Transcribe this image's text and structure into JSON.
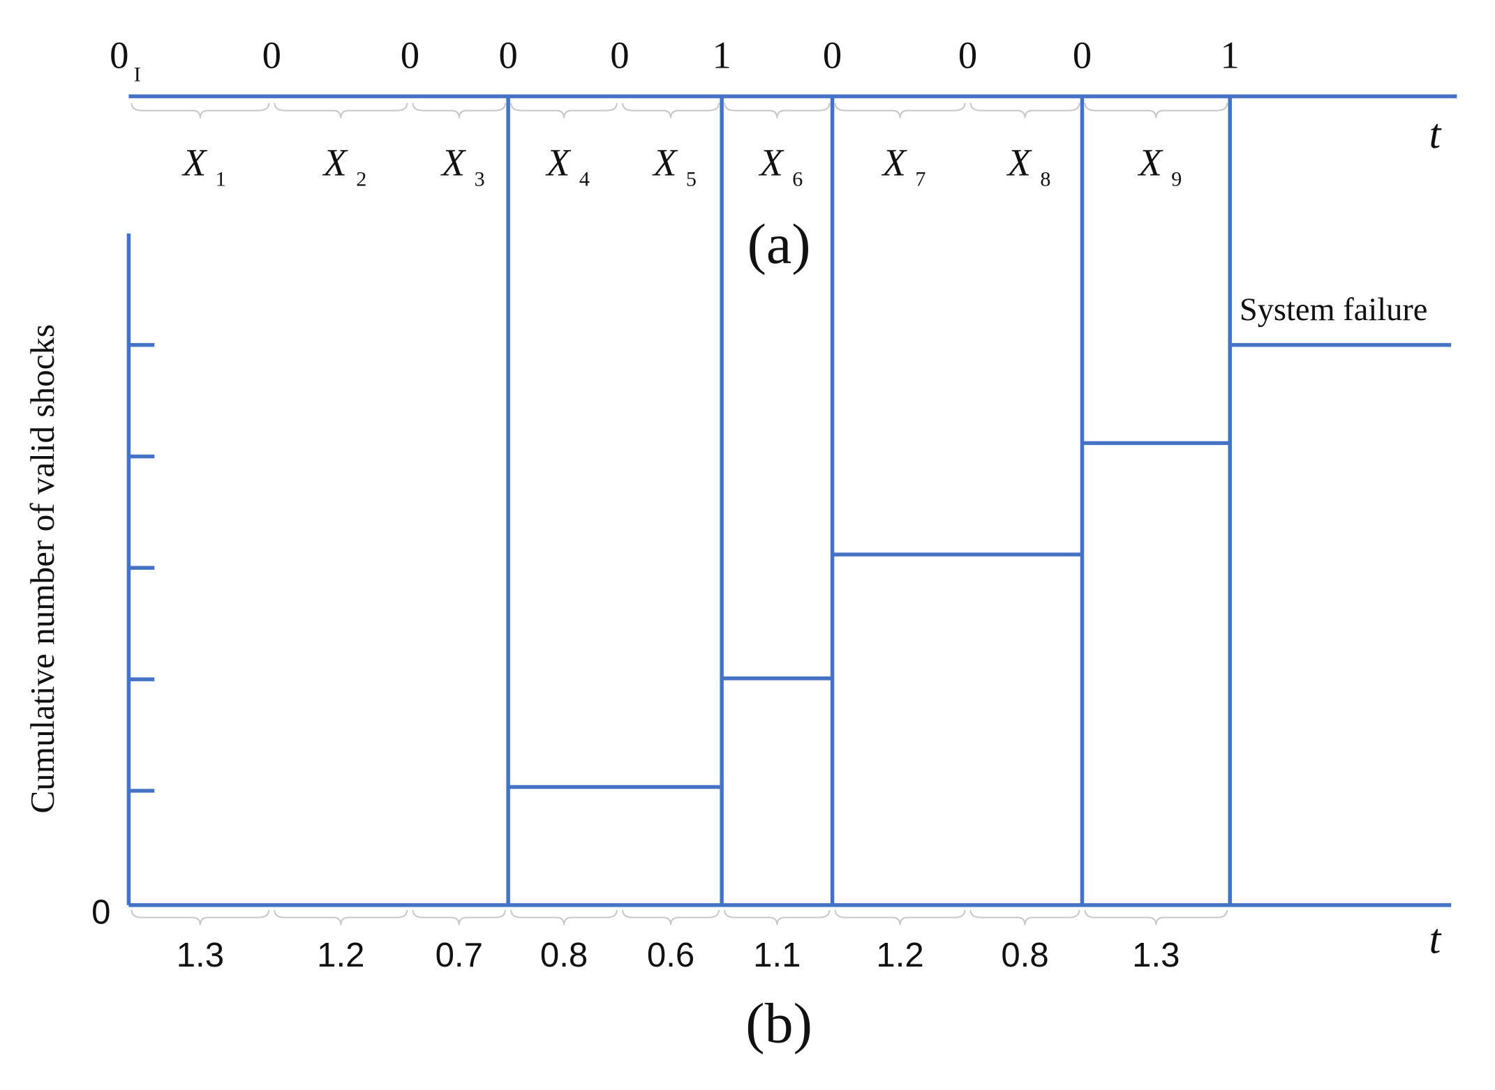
{
  "panel_a": {
    "shock_marks": [
      "0",
      "0",
      "0",
      "0",
      "0",
      "1",
      "0",
      "0",
      "0",
      "1"
    ],
    "first_mark_subscript": "I",
    "interval_symbol": "X",
    "interval_subscripts": [
      "1",
      "2",
      "3",
      "4",
      "5",
      "6",
      "7",
      "8",
      "9"
    ],
    "axis_label": "t",
    "caption": "(a)"
  },
  "panel_b": {
    "y_axis_label": "Cumulative number of valid shocks",
    "origin_label": "0",
    "durations": [
      1.3,
      1.2,
      0.7,
      0.8,
      0.6,
      1.1,
      1.2,
      0.8,
      1.3
    ],
    "axis_label": "t",
    "annotation": "System failure",
    "caption": "(b)"
  }
}
